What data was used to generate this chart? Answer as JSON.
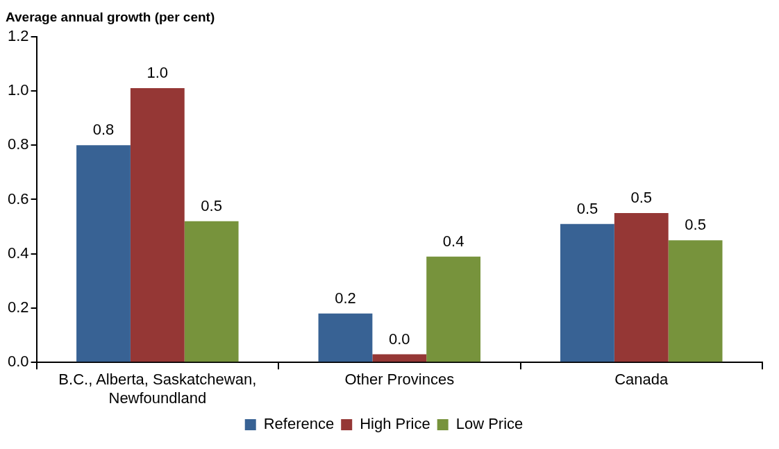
{
  "chart_data": {
    "type": "bar",
    "ylabel": "Average annual growth (per cent)",
    "categories": [
      "B.C., Alberta, Saskatchewan, Newfoundland",
      "Other Provinces",
      "Canada"
    ],
    "series": [
      {
        "name": "Reference",
        "color": "#386294",
        "values": [
          0.8,
          0.18,
          0.51
        ],
        "value_labels": [
          "0.8",
          "0.2",
          "0.5"
        ]
      },
      {
        "name": "High Price",
        "color": "#953735",
        "values": [
          1.01,
          0.03,
          0.55
        ],
        "value_labels": [
          "1.0",
          "0.0",
          "0.5"
        ]
      },
      {
        "name": "Low Price",
        "color": "#77933c",
        "values": [
          0.52,
          0.39,
          0.45
        ],
        "value_labels": [
          "0.5",
          "0.4",
          "0.5"
        ]
      }
    ],
    "ylim": [
      0,
      1.2
    ],
    "yticks": [
      {
        "value": 0,
        "label": "0.0"
      },
      {
        "value": 0.2,
        "label": "0.2"
      },
      {
        "value": 0.4,
        "label": "0.4"
      },
      {
        "value": 0.6,
        "label": "0.6"
      },
      {
        "value": 0.8,
        "label": "0.8"
      },
      {
        "value": 1,
        "label": "1.0"
      },
      {
        "value": 1.2,
        "label": "1.2"
      }
    ],
    "legend": "bottom"
  }
}
